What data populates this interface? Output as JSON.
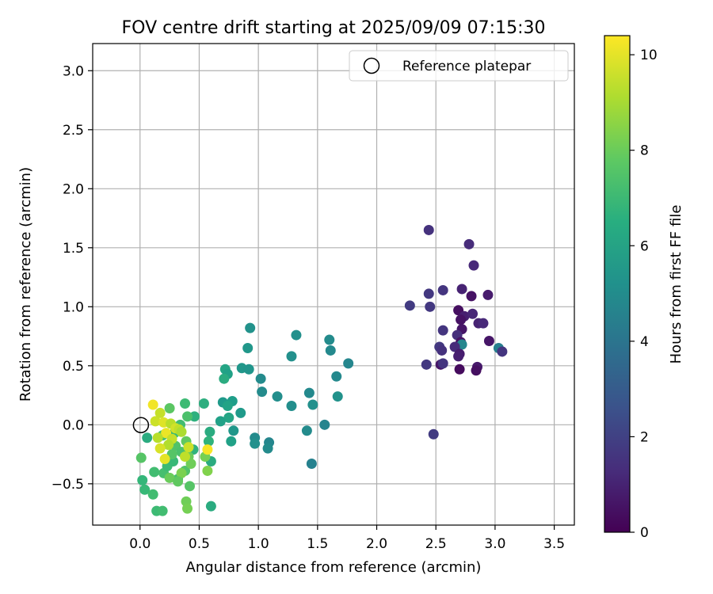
{
  "chart_data": {
    "type": "scatter",
    "title": "FOV centre drift starting at 2025/09/09 07:15:30",
    "xlabel": "Angular distance from reference (arcmin)",
    "ylabel": "Rotation from reference (arcmin)",
    "xlim": [
      -0.4,
      3.67
    ],
    "ylim": [
      -0.85,
      3.23
    ],
    "x_ticks": [
      0.0,
      0.5,
      1.0,
      1.5,
      2.0,
      2.5,
      3.0,
      3.5
    ],
    "x_tick_labels": [
      "0.0",
      "0.5",
      "1.0",
      "1.5",
      "2.0",
      "2.5",
      "3.0",
      "3.5"
    ],
    "y_ticks": [
      -0.5,
      0.0,
      0.5,
      1.0,
      1.5,
      2.0,
      2.5,
      3.0
    ],
    "y_tick_labels": [
      "−0.5",
      "0.0",
      "0.5",
      "1.0",
      "1.5",
      "2.0",
      "2.5",
      "3.0"
    ],
    "grid": true,
    "legend": {
      "placement": "top-right",
      "entries": [
        {
          "label": "Reference platepar",
          "marker": "open-circle"
        }
      ]
    },
    "reference_point": {
      "x": 0.0,
      "y": 0.0
    },
    "colorbar": {
      "label": "Hours from first FF file",
      "colormap": "viridis",
      "range": [
        0,
        10.4
      ],
      "ticks": [
        0,
        2,
        4,
        6,
        8,
        10
      ],
      "tick_labels": [
        "0",
        "2",
        "4",
        "6",
        "8",
        "10"
      ]
    },
    "points": [
      {
        "x": 2.44,
        "y": 1.65,
        "h": 1.5
      },
      {
        "x": 2.78,
        "y": 1.53,
        "h": 1.3
      },
      {
        "x": 2.82,
        "y": 1.35,
        "h": 1.2
      },
      {
        "x": 2.56,
        "y": 1.14,
        "h": 1.6
      },
      {
        "x": 2.72,
        "y": 1.15,
        "h": 1.0
      },
      {
        "x": 2.44,
        "y": 1.11,
        "h": 1.7
      },
      {
        "x": 2.8,
        "y": 1.09,
        "h": 0.5
      },
      {
        "x": 2.94,
        "y": 1.1,
        "h": 0.8
      },
      {
        "x": 2.28,
        "y": 1.01,
        "h": 1.8
      },
      {
        "x": 2.45,
        "y": 1.0,
        "h": 1.7
      },
      {
        "x": 2.69,
        "y": 0.97,
        "h": 0.4
      },
      {
        "x": 2.74,
        "y": 0.92,
        "h": 0.9
      },
      {
        "x": 2.81,
        "y": 0.94,
        "h": 1.1
      },
      {
        "x": 2.71,
        "y": 0.89,
        "h": 0.5
      },
      {
        "x": 2.86,
        "y": 0.86,
        "h": 1.0
      },
      {
        "x": 2.9,
        "y": 0.86,
        "h": 1.2
      },
      {
        "x": 2.56,
        "y": 0.8,
        "h": 1.6
      },
      {
        "x": 2.72,
        "y": 0.81,
        "h": 0.6
      },
      {
        "x": 2.68,
        "y": 0.76,
        "h": 1.4
      },
      {
        "x": 2.71,
        "y": 0.7,
        "h": 0.5
      },
      {
        "x": 2.95,
        "y": 0.71,
        "h": 0.6
      },
      {
        "x": 2.72,
        "y": 0.68,
        "h": 4.8
      },
      {
        "x": 2.53,
        "y": 0.66,
        "h": 1.7
      },
      {
        "x": 2.55,
        "y": 0.63,
        "h": 1.5
      },
      {
        "x": 2.66,
        "y": 0.66,
        "h": 1.3
      },
      {
        "x": 3.03,
        "y": 0.65,
        "h": 4.5
      },
      {
        "x": 3.06,
        "y": 0.62,
        "h": 1.6
      },
      {
        "x": 2.7,
        "y": 0.6,
        "h": 0.8
      },
      {
        "x": 2.69,
        "y": 0.58,
        "h": 0.9
      },
      {
        "x": 2.42,
        "y": 0.51,
        "h": 1.7
      },
      {
        "x": 2.54,
        "y": 0.51,
        "h": 0.6
      },
      {
        "x": 2.56,
        "y": 0.52,
        "h": 1.6
      },
      {
        "x": 2.85,
        "y": 0.49,
        "h": 0.7
      },
      {
        "x": 2.7,
        "y": 0.47,
        "h": 0.3
      },
      {
        "x": 2.84,
        "y": 0.46,
        "h": 0.4
      },
      {
        "x": 2.48,
        "y": -0.08,
        "h": 1.8
      },
      {
        "x": 0.93,
        "y": 0.82,
        "h": 5.3
      },
      {
        "x": 1.32,
        "y": 0.76,
        "h": 5.2
      },
      {
        "x": 1.6,
        "y": 0.72,
        "h": 5.0
      },
      {
        "x": 0.91,
        "y": 0.65,
        "h": 5.5
      },
      {
        "x": 1.61,
        "y": 0.63,
        "h": 4.9
      },
      {
        "x": 1.28,
        "y": 0.58,
        "h": 5.2
      },
      {
        "x": 1.76,
        "y": 0.52,
        "h": 4.8
      },
      {
        "x": 0.86,
        "y": 0.48,
        "h": 5.5
      },
      {
        "x": 0.92,
        "y": 0.47,
        "h": 5.4
      },
      {
        "x": 0.72,
        "y": 0.47,
        "h": 6.1
      },
      {
        "x": 0.74,
        "y": 0.43,
        "h": 5.9
      },
      {
        "x": 1.66,
        "y": 0.41,
        "h": 4.9
      },
      {
        "x": 0.71,
        "y": 0.39,
        "h": 6.4
      },
      {
        "x": 1.02,
        "y": 0.39,
        "h": 5.0
      },
      {
        "x": 1.03,
        "y": 0.28,
        "h": 5.0
      },
      {
        "x": 1.43,
        "y": 0.27,
        "h": 4.9
      },
      {
        "x": 1.67,
        "y": 0.24,
        "h": 5.3
      },
      {
        "x": 1.16,
        "y": 0.24,
        "h": 5.1
      },
      {
        "x": 0.78,
        "y": 0.2,
        "h": 5.8
      },
      {
        "x": 0.7,
        "y": 0.19,
        "h": 5.6
      },
      {
        "x": 0.74,
        "y": 0.16,
        "h": 6.0
      },
      {
        "x": 1.28,
        "y": 0.16,
        "h": 5.1
      },
      {
        "x": 1.46,
        "y": 0.17,
        "h": 5.2
      },
      {
        "x": 0.85,
        "y": 0.1,
        "h": 5.6
      },
      {
        "x": 0.75,
        "y": 0.06,
        "h": 6.1
      },
      {
        "x": 0.68,
        "y": 0.03,
        "h": 5.9
      },
      {
        "x": 1.56,
        "y": 0.0,
        "h": 4.7
      },
      {
        "x": 0.79,
        "y": -0.05,
        "h": 5.5
      },
      {
        "x": 1.41,
        "y": -0.05,
        "h": 5.0
      },
      {
        "x": 0.97,
        "y": -0.11,
        "h": 5.0
      },
      {
        "x": 0.77,
        "y": -0.14,
        "h": 5.9
      },
      {
        "x": 0.97,
        "y": -0.16,
        "h": 5.2
      },
      {
        "x": 1.09,
        "y": -0.15,
        "h": 4.8
      },
      {
        "x": 1.08,
        "y": -0.2,
        "h": 5.0
      },
      {
        "x": 1.45,
        "y": -0.33,
        "h": 4.6
      },
      {
        "x": 0.6,
        "y": -0.69,
        "h": 6.4
      },
      {
        "x": 0.54,
        "y": 0.18,
        "h": 6.5
      },
      {
        "x": 0.46,
        "y": 0.07,
        "h": 6.6
      },
      {
        "x": 0.59,
        "y": -0.06,
        "h": 6.4
      },
      {
        "x": 0.58,
        "y": -0.14,
        "h": 6.7
      },
      {
        "x": 0.6,
        "y": -0.31,
        "h": 6.4
      },
      {
        "x": 0.45,
        "y": -0.21,
        "h": 6.7
      },
      {
        "x": 0.06,
        "y": -0.11,
        "h": 6.4
      },
      {
        "x": 0.02,
        "y": -0.47,
        "h": 6.9
      },
      {
        "x": 0.04,
        "y": -0.55,
        "h": 7.0
      },
      {
        "x": 0.11,
        "y": -0.59,
        "h": 7.2
      },
      {
        "x": 0.14,
        "y": -0.73,
        "h": 7.1
      },
      {
        "x": 0.19,
        "y": -0.73,
        "h": 7.2
      },
      {
        "x": 0.12,
        "y": -0.4,
        "h": 7.2
      },
      {
        "x": 0.2,
        "y": -0.41,
        "h": 7.3
      },
      {
        "x": 0.23,
        "y": -0.35,
        "h": 7.1
      },
      {
        "x": 0.28,
        "y": -0.31,
        "h": 7.0
      },
      {
        "x": 0.32,
        "y": -0.46,
        "h": 7.3
      },
      {
        "x": 0.38,
        "y": -0.39,
        "h": 7.5
      },
      {
        "x": 0.42,
        "y": -0.52,
        "h": 7.6
      },
      {
        "x": 0.39,
        "y": -0.65,
        "h": 8.1
      },
      {
        "x": 0.4,
        "y": -0.71,
        "h": 8.2
      },
      {
        "x": 0.01,
        "y": -0.28,
        "h": 7.6
      },
      {
        "x": 0.38,
        "y": 0.18,
        "h": 7.1
      },
      {
        "x": 0.25,
        "y": 0.14,
        "h": 7.7
      },
      {
        "x": 0.4,
        "y": 0.07,
        "h": 7.4
      },
      {
        "x": 0.34,
        "y": 0.0,
        "h": 7.2
      },
      {
        "x": 0.29,
        "y": -0.07,
        "h": 7.0
      },
      {
        "x": 0.19,
        "y": -0.09,
        "h": 7.3
      },
      {
        "x": 0.39,
        "y": -0.14,
        "h": 7.8
      },
      {
        "x": 0.3,
        "y": -0.18,
        "h": 7.5
      },
      {
        "x": 0.35,
        "y": -0.23,
        "h": 7.4
      },
      {
        "x": 0.41,
        "y": -0.27,
        "h": 8.0
      },
      {
        "x": 0.27,
        "y": -0.25,
        "h": 7.6
      },
      {
        "x": 0.55,
        "y": -0.27,
        "h": 8.2
      },
      {
        "x": 0.57,
        "y": -0.39,
        "h": 8.4
      },
      {
        "x": 0.43,
        "y": -0.33,
        "h": 8.1
      },
      {
        "x": 0.35,
        "y": -0.41,
        "h": 8.3
      },
      {
        "x": 0.25,
        "y": -0.45,
        "h": 8.0
      },
      {
        "x": 0.32,
        "y": -0.48,
        "h": 7.8
      },
      {
        "x": 0.13,
        "y": 0.03,
        "h": 9.6
      },
      {
        "x": 0.11,
        "y": 0.17,
        "h": 10.2
      },
      {
        "x": 0.17,
        "y": 0.1,
        "h": 9.5
      },
      {
        "x": 0.2,
        "y": 0.02,
        "h": 9.9
      },
      {
        "x": 0.26,
        "y": 0.01,
        "h": 9.3
      },
      {
        "x": 0.3,
        "y": -0.03,
        "h": 9.7
      },
      {
        "x": 0.33,
        "y": -0.04,
        "h": 9.4
      },
      {
        "x": 0.35,
        "y": -0.06,
        "h": 9.1
      },
      {
        "x": 0.22,
        "y": -0.07,
        "h": 10.1
      },
      {
        "x": 0.15,
        "y": -0.11,
        "h": 9.3
      },
      {
        "x": 0.27,
        "y": -0.12,
        "h": 9.5
      },
      {
        "x": 0.24,
        "y": -0.17,
        "h": 9.2
      },
      {
        "x": 0.17,
        "y": -0.2,
        "h": 9.8
      },
      {
        "x": 0.41,
        "y": -0.19,
        "h": 9.6
      },
      {
        "x": 0.57,
        "y": -0.21,
        "h": 10.3
      },
      {
        "x": 0.21,
        "y": -0.29,
        "h": 10.0
      },
      {
        "x": 0.38,
        "y": -0.27,
        "h": 9.4
      }
    ]
  }
}
